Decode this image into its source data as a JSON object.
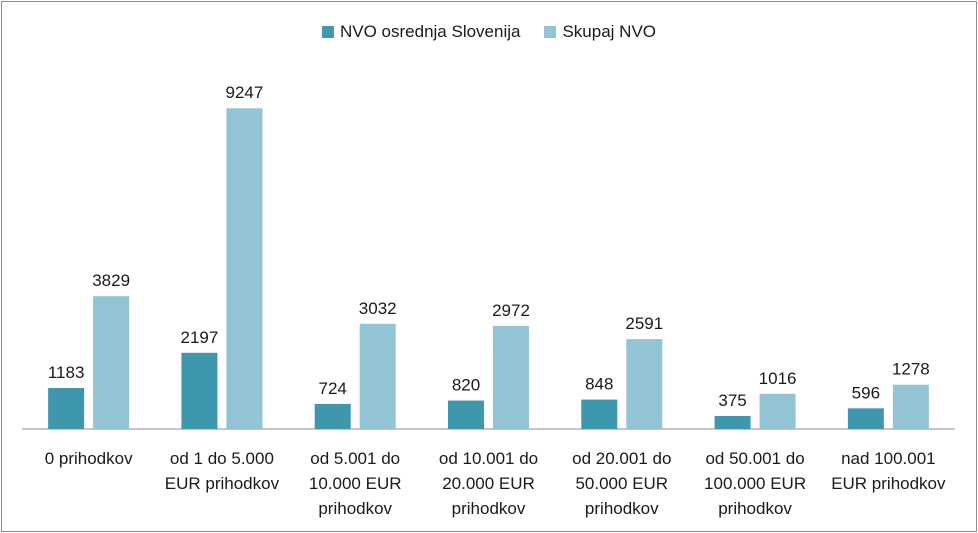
{
  "chart_data": {
    "type": "bar",
    "categories": [
      "0 prihodkov",
      "od 1 do 5.000 EUR prihodkov",
      "od 5.001 do 10.000  EUR prihodkov",
      "od 10.001 do 20.000  EUR prihodkov",
      "od 20.001 do 50.000  EUR prihodkov",
      "od 50.001 do 100.000  EUR prihodkov",
      "nad 100.001 EUR prihodkov"
    ],
    "category_lines": [
      [
        "0 prihodkov"
      ],
      [
        "od 1 do 5.000",
        "EUR prihodkov"
      ],
      [
        "od 5.001 do",
        "10.000  EUR",
        "prihodkov"
      ],
      [
        "od 10.001 do",
        "20.000  EUR",
        "prihodkov"
      ],
      [
        "od 20.001 do",
        "50.000  EUR",
        "prihodkov"
      ],
      [
        "od 50.001 do",
        "100.000  EUR",
        "prihodkov"
      ],
      [
        "nad 100.001",
        "EUR prihodkov"
      ]
    ],
    "series": [
      {
        "name": "NVO osrednja Slovenija",
        "color": "#3f97ad",
        "values": [
          1183,
          2197,
          724,
          820,
          848,
          375,
          596
        ]
      },
      {
        "name": "Skupaj NVO",
        "color": "#93c4d6",
        "values": [
          3829,
          9247,
          3032,
          2972,
          2591,
          1016,
          1278
        ]
      }
    ],
    "ylim": [
      0,
      9600
    ],
    "grid": false,
    "legend_position": "top-center"
  }
}
